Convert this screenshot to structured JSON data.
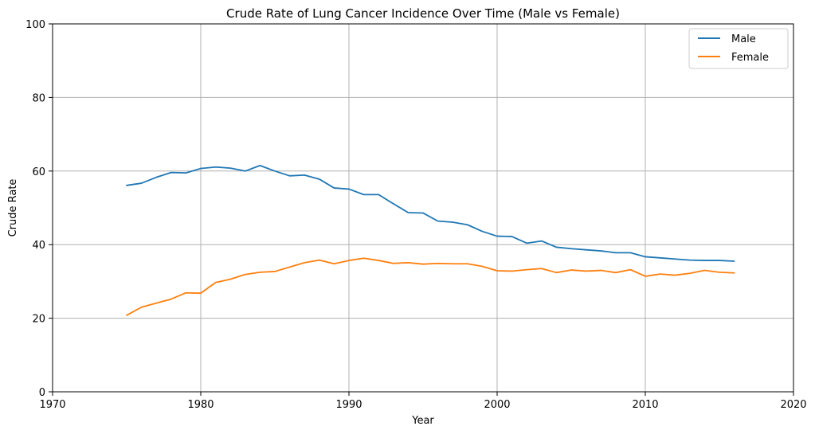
{
  "chart_data": {
    "type": "line",
    "title": "Crude Rate of Lung Cancer Incidence Over Time (Male vs Female)",
    "xlabel": "Year",
    "ylabel": "Crude Rate",
    "xlim": [
      1970,
      2020
    ],
    "ylim": [
      0,
      100
    ],
    "xticks": [
      1970,
      1980,
      1990,
      2000,
      2010,
      2020
    ],
    "yticks": [
      0,
      20,
      40,
      60,
      80,
      100
    ],
    "grid": true,
    "legend_position": "top-right",
    "x": [
      1975,
      1976,
      1977,
      1978,
      1979,
      1980,
      1981,
      1982,
      1983,
      1984,
      1985,
      1986,
      1987,
      1988,
      1989,
      1990,
      1991,
      1992,
      1993,
      1994,
      1995,
      1996,
      1997,
      1998,
      1999,
      2000,
      2001,
      2002,
      2003,
      2004,
      2005,
      2006,
      2007,
      2008,
      2009,
      2010,
      2011,
      2012,
      2013,
      2014,
      2015,
      2016
    ],
    "series": [
      {
        "name": "Male",
        "color": "#1f77b4",
        "values": [
          56.1,
          56.7,
          58.3,
          59.6,
          59.5,
          60.7,
          61.1,
          60.8,
          60.0,
          61.5,
          60.0,
          58.7,
          58.9,
          57.8,
          55.4,
          55.1,
          53.6,
          53.6,
          51.1,
          48.7,
          48.6,
          46.4,
          46.1,
          45.4,
          43.6,
          42.3,
          42.2,
          40.4,
          41.0,
          39.3,
          38.9,
          38.6,
          38.3,
          37.8,
          37.8,
          36.7,
          36.4,
          36.1,
          35.8,
          35.7,
          35.7,
          35.5
        ]
      },
      {
        "name": "Female",
        "color": "#ff7f0e",
        "values": [
          20.8,
          23.0,
          24.1,
          25.2,
          26.9,
          26.8,
          29.7,
          30.6,
          31.9,
          32.5,
          32.7,
          33.9,
          35.1,
          35.8,
          34.8,
          35.7,
          36.3,
          35.7,
          34.9,
          35.1,
          34.7,
          34.9,
          34.8,
          34.8,
          34.1,
          32.9,
          32.8,
          33.2,
          33.5,
          32.4,
          33.1,
          32.8,
          33.0,
          32.4,
          33.2,
          31.4,
          32.0,
          31.7,
          32.2,
          33.0,
          32.5,
          32.3
        ]
      }
    ]
  }
}
